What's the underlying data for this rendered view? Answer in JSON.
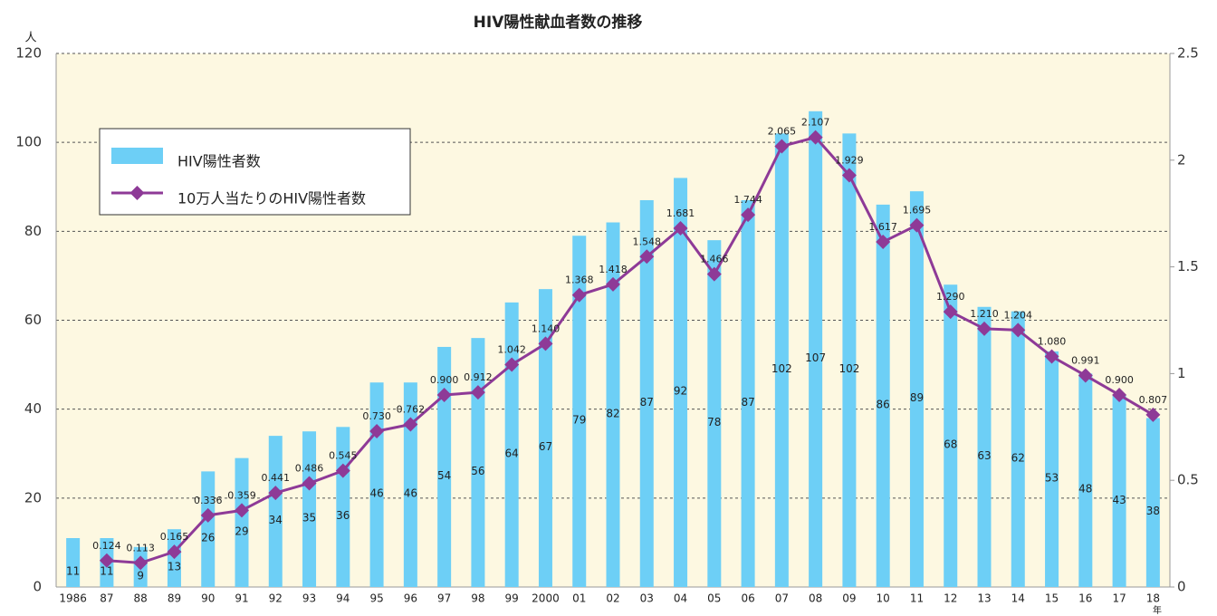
{
  "chart_data": {
    "type": "bar",
    "title": "HIV陽性献血者数の推移",
    "ylabel": "人",
    "xlabel": "年",
    "categories": [
      "1986",
      "87",
      "88",
      "89",
      "90",
      "91",
      "92",
      "93",
      "94",
      "95",
      "96",
      "97",
      "98",
      "99",
      "2000",
      "01",
      "02",
      "03",
      "04",
      "05",
      "06",
      "07",
      "08",
      "09",
      "10",
      "11",
      "12",
      "13",
      "14",
      "15",
      "16",
      "17",
      "18"
    ],
    "series": [
      {
        "name": "HIV陽性者数",
        "type": "bar",
        "color": "#6dcff6",
        "values": [
          11,
          11,
          9,
          13,
          26,
          29,
          34,
          35,
          36,
          46,
          46,
          54,
          56,
          64,
          67,
          79,
          82,
          87,
          92,
          78,
          87,
          102,
          107,
          102,
          86,
          89,
          68,
          63,
          62,
          53,
          48,
          43,
          38
        ]
      },
      {
        "name": "10万人当たりのHIV陽性者数",
        "type": "line",
        "axis": "y2",
        "color": "#8e3a97",
        "values": [
          null,
          0.124,
          0.113,
          0.165,
          0.336,
          0.359,
          0.441,
          0.486,
          0.545,
          0.73,
          0.762,
          0.9,
          0.912,
          1.042,
          1.14,
          1.368,
          1.418,
          1.548,
          1.681,
          1.466,
          1.744,
          2.065,
          2.107,
          1.929,
          1.617,
          1.695,
          1.29,
          1.21,
          1.204,
          1.08,
          0.991,
          0.9,
          0.807
        ],
        "value_labels": [
          null,
          "0.124",
          "0.113",
          "0.165",
          "0.336",
          "0.359",
          "0.441",
          "0.486",
          "0.545",
          "0.730",
          "0.762",
          "0.900",
          "0.912",
          "1.042",
          "1.140",
          "1.368",
          "1.418",
          "1.548",
          "1.681",
          "1.466",
          "1.744",
          "2.065",
          "2.107",
          "1.929",
          "1.617",
          "1.695",
          "1.290",
          "1.210",
          "1.204",
          "1.080",
          "0.991",
          "0.900",
          "0.807"
        ]
      }
    ],
    "ylim": [
      0,
      120
    ],
    "yticks": [
      0,
      20,
      40,
      60,
      80,
      100,
      120
    ],
    "y2lim": [
      0,
      2.5
    ],
    "y2ticks": [
      0,
      0.5,
      1,
      1.5,
      2,
      2.5
    ],
    "grid": true,
    "legend": "upper left"
  }
}
